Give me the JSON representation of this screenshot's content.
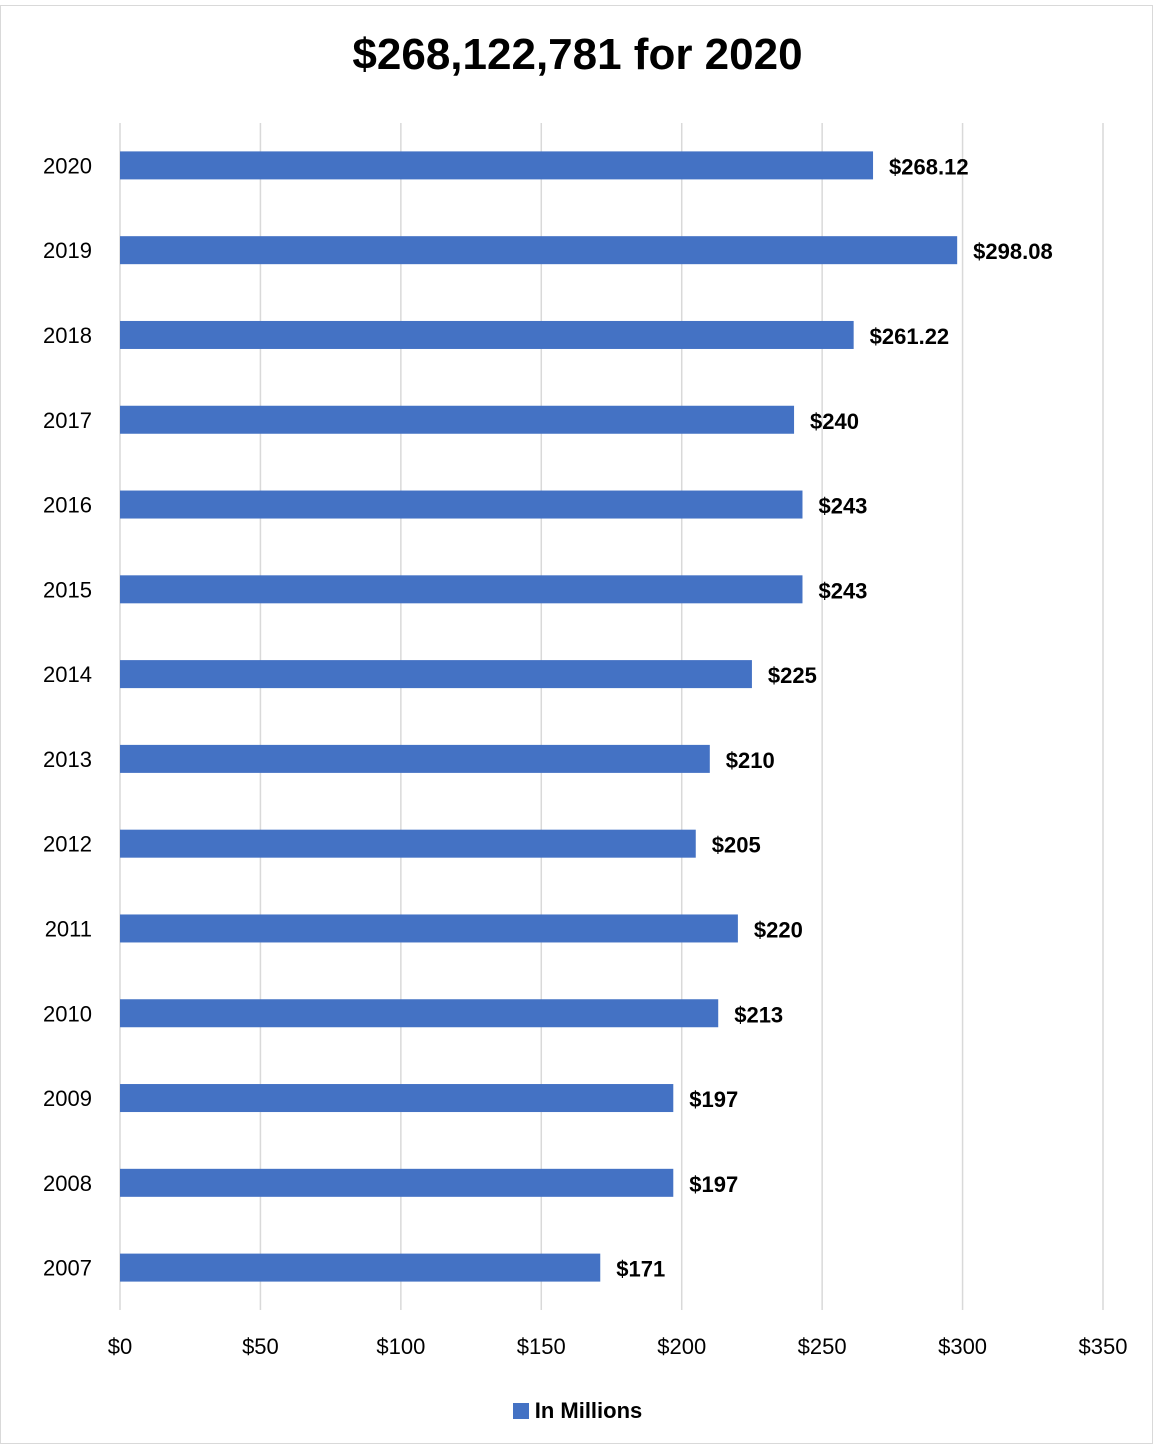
{
  "chart_data": {
    "type": "bar",
    "orientation": "horizontal",
    "title": "$268,122,781 for 2020",
    "categories": [
      "2020",
      "2019",
      "2018",
      "2017",
      "2016",
      "2015",
      "2014",
      "2013",
      "2012",
      "2011",
      "2010",
      "2009",
      "2008",
      "2007"
    ],
    "series": [
      {
        "name": "In Millions",
        "values": [
          268.12,
          298.08,
          261.22,
          240,
          243,
          243,
          225,
          210,
          205,
          220,
          213,
          197,
          197,
          171
        ],
        "labels": [
          "$268.12",
          "$298.08",
          "$261.22",
          "$240",
          "$243",
          "$243",
          "$225",
          "$210",
          "$205",
          "$220",
          "$213",
          "$197",
          "$197",
          "$171"
        ],
        "color": "#4472c4"
      }
    ],
    "xticks": [
      "$0",
      "$50",
      "$100",
      "$150",
      "$200",
      "$250",
      "$300",
      "$350"
    ],
    "xlim": [
      0,
      350
    ],
    "grid": true,
    "legend_position": "bottom"
  }
}
